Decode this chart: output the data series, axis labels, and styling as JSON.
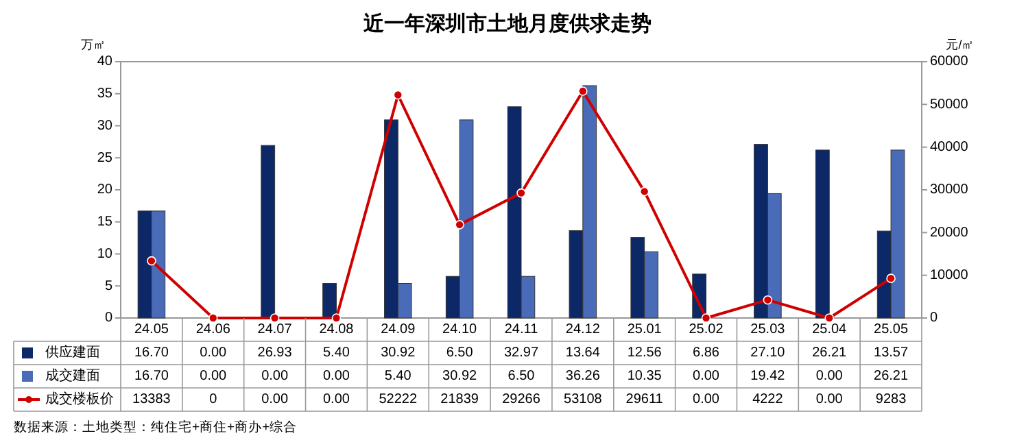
{
  "chart_data": {
    "type": "bar",
    "title": "近一年深圳市土地月度供求走势",
    "ylabel": "万㎡",
    "y2label": "元/㎡",
    "categories": [
      "24.05",
      "24.06",
      "24.07",
      "24.08",
      "24.09",
      "24.10",
      "24.11",
      "24.12",
      "25.01",
      "25.02",
      "25.03",
      "25.04",
      "25.05"
    ],
    "series": [
      {
        "name": "供应建面",
        "color": "#0c2866",
        "values": [
          16.7,
          0.0,
          26.93,
          5.4,
          30.92,
          6.5,
          32.97,
          13.64,
          12.56,
          6.86,
          27.1,
          26.21,
          13.57
        ],
        "value_labels": [
          "16.70",
          "0.00",
          "26.93",
          "5.40",
          "30.92",
          "6.50",
          "32.97",
          "13.64",
          "12.56",
          "6.86",
          "27.10",
          "26.21",
          "13.57"
        ]
      },
      {
        "name": "成交建面",
        "color": "#4a6cb8",
        "values": [
          16.7,
          0.0,
          0.0,
          0.0,
          5.4,
          30.92,
          6.5,
          36.26,
          10.35,
          0.0,
          19.42,
          0.0,
          26.21
        ],
        "value_labels": [
          "16.70",
          "0.00",
          "0.00",
          "0.00",
          "5.40",
          "30.92",
          "6.50",
          "36.26",
          "10.35",
          "0.00",
          "19.42",
          "0.00",
          "26.21"
        ]
      },
      {
        "name": "成交楼板价",
        "type": "line",
        "axis": "y2",
        "color": "#d00000",
        "values": [
          13383,
          0,
          0,
          0,
          52222,
          21839,
          29266,
          53108,
          29611,
          0,
          4222,
          0,
          9283
        ],
        "value_labels": [
          "13383",
          "0",
          "0.00",
          "0.00",
          "52222",
          "21839",
          "29266",
          "53108",
          "29611",
          "0.00",
          "4222",
          "0.00",
          "9283"
        ]
      }
    ],
    "ylim": [
      0,
      40
    ],
    "yticks": [
      0,
      5,
      10,
      15,
      20,
      25,
      30,
      35,
      40
    ],
    "y2lim": [
      0,
      60000
    ],
    "y2ticks": [
      0,
      10000,
      20000,
      30000,
      40000,
      50000,
      60000
    ],
    "legend": "bottom",
    "marker": "circle",
    "line_style": "solid",
    "annotations": [
      "数据来源：土地类型：纯住宅+商住+商办+综合"
    ]
  }
}
